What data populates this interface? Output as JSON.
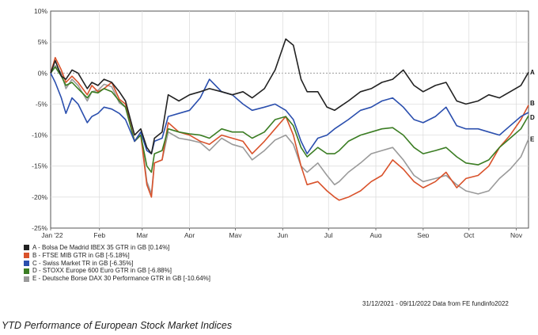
{
  "chart_data": {
    "type": "line",
    "ylim": [
      -25,
      10
    ],
    "y_ticks": [
      "10%",
      "5%",
      "0%",
      "-5%",
      "-10%",
      "-15%",
      "-20%",
      "-25%"
    ],
    "x_ticks": [
      "Jan '22",
      "Feb",
      "Mar",
      "Apr",
      "May",
      "Jun",
      "Jul",
      "Aug",
      "Sep",
      "Oct",
      "Nov"
    ],
    "x_range": [
      "2021-12-31",
      "2022-11-09"
    ],
    "grid": true,
    "reference_line": 0,
    "legend_position": "bottom-left",
    "series": [
      {
        "id": "E",
        "name": "E - Deutsche Borse DAX 30 Performance GTR in GB [-10.64%]",
        "color": "#9a9a9a",
        "x": [
          "2021-12-31",
          "2022-01-03",
          "2022-01-07",
          "2022-01-10",
          "2022-01-14",
          "2022-01-18",
          "2022-01-24",
          "2022-01-27",
          "2022-01-31",
          "2022-02-04",
          "2022-02-09",
          "2022-02-14",
          "2022-02-18",
          "2022-02-24",
          "2022-02-28",
          "2022-03-04",
          "2022-03-07",
          "2022-03-09",
          "2022-03-14",
          "2022-03-18",
          "2022-03-25",
          "2022-04-01",
          "2022-04-08",
          "2022-04-14",
          "2022-04-22",
          "2022-04-29",
          "2022-05-06",
          "2022-05-12",
          "2022-05-20",
          "2022-05-27",
          "2022-06-03",
          "2022-06-08",
          "2022-06-13",
          "2022-06-17",
          "2022-06-24",
          "2022-06-30",
          "2022-07-05",
          "2022-07-08",
          "2022-07-14",
          "2022-07-22",
          "2022-07-29",
          "2022-08-05",
          "2022-08-12",
          "2022-08-19",
          "2022-08-26",
          "2022-09-01",
          "2022-09-09",
          "2022-09-16",
          "2022-09-23",
          "2022-09-29",
          "2022-10-07",
          "2022-10-14",
          "2022-10-21",
          "2022-10-28",
          "2022-11-04",
          "2022-11-09"
        ],
        "values": [
          0,
          1.2,
          0,
          -2.5,
          -1,
          -2,
          -4.5,
          -3,
          -2.8,
          -1.8,
          -2.2,
          -4.8,
          -5.5,
          -11,
          -9.5,
          -17.5,
          -19.5,
          -14.5,
          -14,
          -9.5,
          -10.5,
          -10.8,
          -11.2,
          -12.5,
          -10.5,
          -11.5,
          -12,
          -14,
          -12.5,
          -10.8,
          -10,
          -11.5,
          -15,
          -16,
          -14.5,
          -16.5,
          -18,
          -17.5,
          -16,
          -14.5,
          -13,
          -12.5,
          -12,
          -14,
          -16.5,
          -17.5,
          -17,
          -16.5,
          -18,
          -19,
          -19.5,
          -19,
          -17,
          -15.5,
          -13.5,
          -10.64
        ]
      },
      {
        "id": "B",
        "name": "B - FTSE MIB GTR in GB [-5.18%]",
        "color": "#d9522b",
        "x": [
          "2021-12-31",
          "2022-01-03",
          "2022-01-07",
          "2022-01-10",
          "2022-01-14",
          "2022-01-18",
          "2022-01-24",
          "2022-01-27",
          "2022-01-31",
          "2022-02-04",
          "2022-02-09",
          "2022-02-14",
          "2022-02-18",
          "2022-02-24",
          "2022-02-28",
          "2022-03-04",
          "2022-03-07",
          "2022-03-09",
          "2022-03-14",
          "2022-03-18",
          "2022-03-25",
          "2022-04-01",
          "2022-04-08",
          "2022-04-14",
          "2022-04-22",
          "2022-04-29",
          "2022-05-06",
          "2022-05-12",
          "2022-05-20",
          "2022-05-27",
          "2022-06-03",
          "2022-06-08",
          "2022-06-13",
          "2022-06-17",
          "2022-06-24",
          "2022-06-30",
          "2022-07-05",
          "2022-07-08",
          "2022-07-14",
          "2022-07-22",
          "2022-07-29",
          "2022-08-05",
          "2022-08-12",
          "2022-08-19",
          "2022-08-26",
          "2022-09-01",
          "2022-09-09",
          "2022-09-16",
          "2022-09-23",
          "2022-09-29",
          "2022-10-07",
          "2022-10-14",
          "2022-10-21",
          "2022-10-28",
          "2022-11-04",
          "2022-11-09"
        ],
        "values": [
          0,
          2.5,
          0.5,
          -1.5,
          -0.5,
          -1.5,
          -3.5,
          -2,
          -3,
          -2.5,
          -1.5,
          -4.2,
          -5,
          -11,
          -10,
          -18,
          -20,
          -14.5,
          -14,
          -8,
          -9.5,
          -10,
          -11,
          -11.5,
          -10,
          -10.5,
          -11,
          -13,
          -11,
          -9,
          -7,
          -10,
          -15,
          -18,
          -17.5,
          -19,
          -20,
          -20.5,
          -20,
          -19,
          -17.5,
          -16.5,
          -14,
          -15.5,
          -17.5,
          -18.5,
          -17.5,
          -16,
          -18.5,
          -17,
          -16.5,
          -15,
          -12,
          -10,
          -7.5,
          -5.18
        ]
      },
      {
        "id": "D",
        "name": "D - STOXX Europe 600 Euro GTR in GB [-6.88%]",
        "color": "#3b7d23",
        "x": [
          "2021-12-31",
          "2022-01-03",
          "2022-01-07",
          "2022-01-10",
          "2022-01-14",
          "2022-01-18",
          "2022-01-24",
          "2022-01-27",
          "2022-01-31",
          "2022-02-04",
          "2022-02-09",
          "2022-02-14",
          "2022-02-18",
          "2022-02-24",
          "2022-02-28",
          "2022-03-04",
          "2022-03-07",
          "2022-03-09",
          "2022-03-14",
          "2022-03-18",
          "2022-03-25",
          "2022-04-01",
          "2022-04-08",
          "2022-04-14",
          "2022-04-22",
          "2022-04-29",
          "2022-05-06",
          "2022-05-12",
          "2022-05-20",
          "2022-05-27",
          "2022-06-03",
          "2022-06-08",
          "2022-06-13",
          "2022-06-17",
          "2022-06-24",
          "2022-06-30",
          "2022-07-05",
          "2022-07-08",
          "2022-07-14",
          "2022-07-22",
          "2022-07-29",
          "2022-08-05",
          "2022-08-12",
          "2022-08-19",
          "2022-08-26",
          "2022-09-01",
          "2022-09-09",
          "2022-09-16",
          "2022-09-23",
          "2022-09-29",
          "2022-10-07",
          "2022-10-14",
          "2022-10-21",
          "2022-10-28",
          "2022-11-04",
          "2022-11-09"
        ],
        "values": [
          0,
          1,
          -0.5,
          -2,
          -1.5,
          -2.5,
          -4,
          -3,
          -3.2,
          -2.5,
          -3,
          -4.5,
          -5.5,
          -11,
          -10,
          -15,
          -16,
          -13,
          -12.5,
          -9,
          -9.5,
          -9.8,
          -10,
          -10.5,
          -9,
          -9.5,
          -9.5,
          -10.5,
          -9.5,
          -7.5,
          -7,
          -8.5,
          -12,
          -13.5,
          -12,
          -13,
          -13,
          -12.5,
          -11,
          -10,
          -9.5,
          -9,
          -8.8,
          -10,
          -12,
          -13,
          -12.5,
          -12,
          -13.5,
          -14.5,
          -14.8,
          -14,
          -12,
          -10.5,
          -9,
          -6.88
        ]
      },
      {
        "id": "C",
        "name": "C - Swiss Market TR in GB [-6.35%]",
        "color": "#2b4fae",
        "x": [
          "2021-12-31",
          "2022-01-03",
          "2022-01-07",
          "2022-01-10",
          "2022-01-14",
          "2022-01-18",
          "2022-01-24",
          "2022-01-27",
          "2022-01-31",
          "2022-02-04",
          "2022-02-09",
          "2022-02-14",
          "2022-02-18",
          "2022-02-24",
          "2022-02-28",
          "2022-03-04",
          "2022-03-07",
          "2022-03-09",
          "2022-03-14",
          "2022-03-18",
          "2022-03-25",
          "2022-04-01",
          "2022-04-08",
          "2022-04-14",
          "2022-04-22",
          "2022-04-29",
          "2022-05-06",
          "2022-05-12",
          "2022-05-20",
          "2022-05-27",
          "2022-06-03",
          "2022-06-08",
          "2022-06-13",
          "2022-06-17",
          "2022-06-24",
          "2022-06-30",
          "2022-07-05",
          "2022-07-08",
          "2022-07-14",
          "2022-07-22",
          "2022-07-29",
          "2022-08-05",
          "2022-08-12",
          "2022-08-19",
          "2022-08-26",
          "2022-09-01",
          "2022-09-09",
          "2022-09-16",
          "2022-09-23",
          "2022-09-29",
          "2022-10-07",
          "2022-10-14",
          "2022-10-21",
          "2022-10-28",
          "2022-11-04",
          "2022-11-09"
        ],
        "values": [
          0,
          -1.5,
          -4,
          -6.5,
          -4,
          -5,
          -8,
          -7,
          -6.5,
          -5.5,
          -5.8,
          -6.5,
          -7.5,
          -11,
          -9.5,
          -12.5,
          -13,
          -11,
          -10.5,
          -7,
          -6.5,
          -6,
          -4,
          -1,
          -3,
          -3.5,
          -5,
          -6,
          -5.5,
          -5,
          -6,
          -7.5,
          -11,
          -13,
          -10.5,
          -10,
          -9,
          -8.5,
          -7.5,
          -6,
          -5.5,
          -4.5,
          -4,
          -5.5,
          -7.5,
          -8,
          -7,
          -5.5,
          -8.5,
          -9,
          -9,
          -9.5,
          -10,
          -8.5,
          -7,
          -6.35
        ]
      },
      {
        "id": "A",
        "name": "A - Bolsa De Madrid IBEX 35 GTR in GB [0.14%]",
        "color": "#222222",
        "x": [
          "2021-12-31",
          "2022-01-03",
          "2022-01-07",
          "2022-01-10",
          "2022-01-14",
          "2022-01-18",
          "2022-01-24",
          "2022-01-27",
          "2022-01-31",
          "2022-02-04",
          "2022-02-09",
          "2022-02-14",
          "2022-02-18",
          "2022-02-24",
          "2022-02-28",
          "2022-03-04",
          "2022-03-07",
          "2022-03-09",
          "2022-03-14",
          "2022-03-18",
          "2022-03-25",
          "2022-04-01",
          "2022-04-08",
          "2022-04-14",
          "2022-04-22",
          "2022-04-29",
          "2022-05-06",
          "2022-05-12",
          "2022-05-20",
          "2022-05-27",
          "2022-06-03",
          "2022-06-08",
          "2022-06-13",
          "2022-06-17",
          "2022-06-24",
          "2022-06-30",
          "2022-07-05",
          "2022-07-08",
          "2022-07-14",
          "2022-07-22",
          "2022-07-29",
          "2022-08-05",
          "2022-08-12",
          "2022-08-19",
          "2022-08-26",
          "2022-09-01",
          "2022-09-09",
          "2022-09-16",
          "2022-09-23",
          "2022-09-29",
          "2022-10-07",
          "2022-10-14",
          "2022-10-21",
          "2022-10-28",
          "2022-11-04",
          "2022-11-09"
        ],
        "values": [
          0,
          2,
          -0.5,
          -1,
          0.5,
          0,
          -2.5,
          -1.5,
          -2,
          -1,
          -1.5,
          -3,
          -4.5,
          -10,
          -9,
          -12,
          -13,
          -10.5,
          -9.5,
          -3.5,
          -4.5,
          -3.5,
          -3,
          -2.5,
          -3,
          -3.5,
          -3,
          -4,
          -2.5,
          0.5,
          5.5,
          4.5,
          -1,
          -3,
          -3,
          -5.5,
          -6,
          -5.5,
          -4.5,
          -3,
          -2.5,
          -1.5,
          -1,
          0.5,
          -2,
          -3,
          -2,
          -1.5,
          -4.5,
          -5,
          -4.5,
          -3.5,
          -4,
          -3,
          -2,
          0.14
        ]
      }
    ]
  },
  "legend": [
    {
      "text": "A - Bolsa De Madrid IBEX 35 GTR in GB [0.14%]",
      "color": "#222222"
    },
    {
      "text": "B - FTSE MIB GTR in GB [-5.18%]",
      "color": "#d9522b"
    },
    {
      "text": "C - Swiss Market TR in GB [-6.35%]",
      "color": "#2b4fae"
    },
    {
      "text": "D - STOXX Europe 600 Euro GTR in GB [-6.88%]",
      "color": "#3b7d23"
    },
    {
      "text": "E - Deutsche Borse DAX 30 Performance GTR in GB [-10.64%]",
      "color": "#9a9a9a"
    }
  ],
  "end_labels": [
    "A",
    "B",
    "D",
    "E"
  ],
  "source_note": "31/12/2021 - 09/11/2022 Data from FE fundinfo2022",
  "caption": "YTD Performance of European Stock Market Indices"
}
